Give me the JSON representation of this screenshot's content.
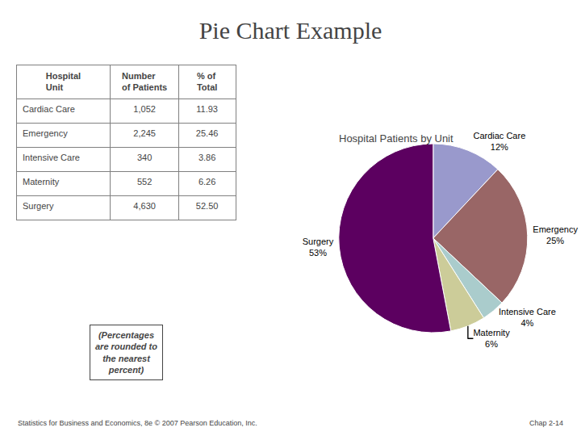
{
  "title": "Pie Chart Example",
  "annotations": [
    "(Percentages\nare rounded to\nthe nearest\npercent)",
    "Statistics for Business and Economics, 8e © 2007 Pearson Education, Inc.",
    "Chap 2-14"
  ],
  "chart_data": [
    {
      "type": "pie",
      "title": "Hospital Patients by Unit",
      "categories": [
        "Cardiac Care",
        "Emergency",
        "Intensive Care",
        "Maternity",
        "Surgery"
      ],
      "values": [
        12,
        25,
        4,
        6,
        53
      ],
      "value_labels": [
        "12%",
        "25%",
        "4%",
        "6%",
        "53%"
      ],
      "data_labels": true,
      "colors": [
        "#9999CC",
        "#996666",
        "#AACCCC",
        "#CCCC99",
        "#5C0060"
      ]
    },
    {
      "type": "table",
      "headers": [
        "Hospital\nUnit",
        "Number\nof Patients",
        "% of\nTotal"
      ],
      "rows": [
        [
          "Cardiac Care",
          "1,052",
          "11.93"
        ],
        [
          "Emergency",
          "2,245",
          "25.46"
        ],
        [
          "Intensive Care",
          "340",
          "3.86"
        ],
        [
          "Maternity",
          "552",
          "6.26"
        ],
        [
          "Surgery",
          "4,630",
          "52.50"
        ]
      ]
    }
  ]
}
